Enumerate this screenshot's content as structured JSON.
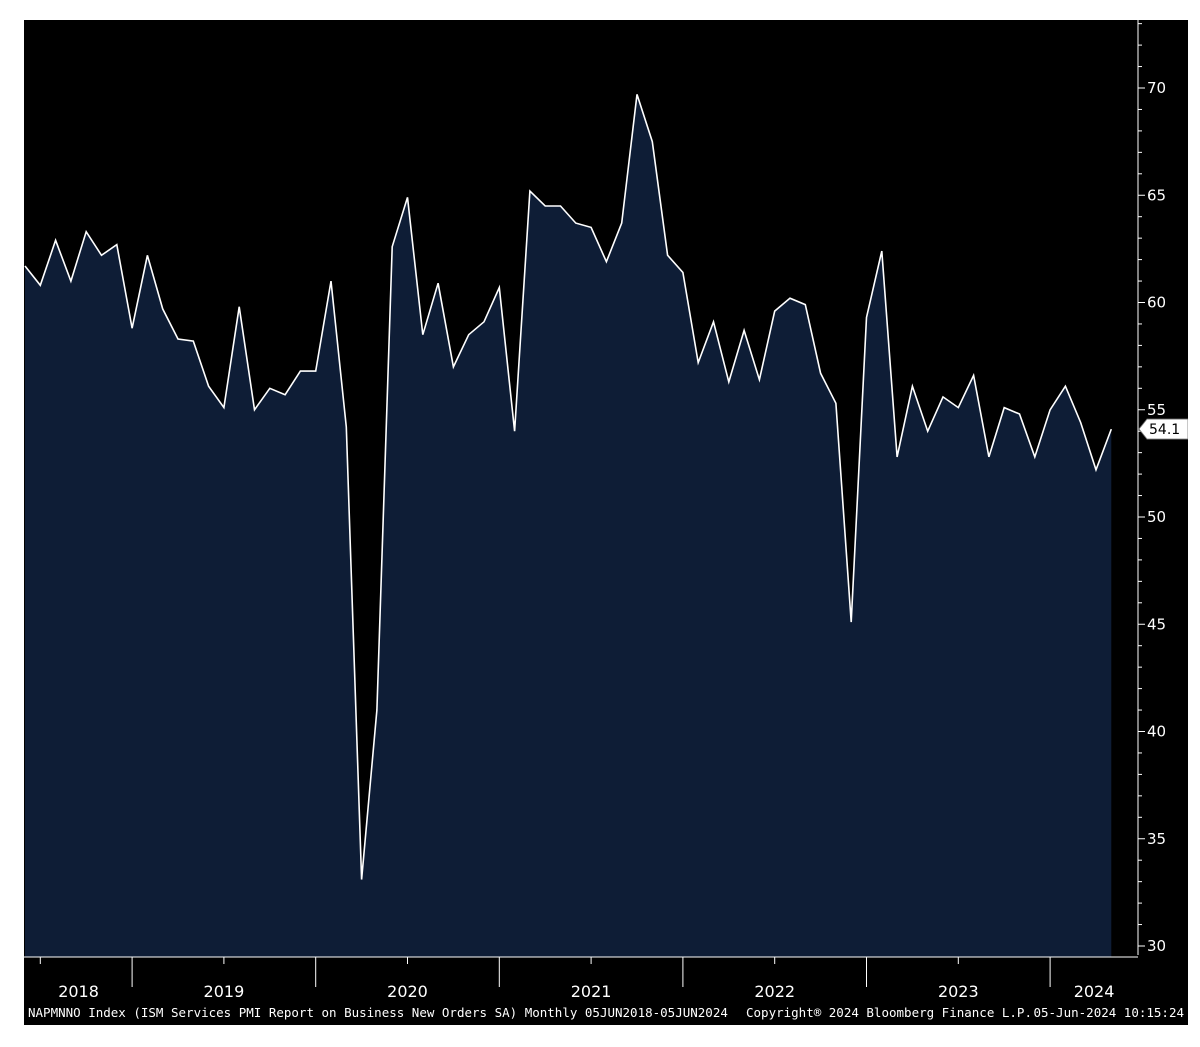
{
  "chart_data": {
    "type": "area",
    "series": [
      {
        "name": "NAPMNNO Index",
        "x": [
          "2018-06",
          "2018-07",
          "2018-08",
          "2018-09",
          "2018-10",
          "2018-11",
          "2018-12",
          "2019-01",
          "2019-02",
          "2019-03",
          "2019-04",
          "2019-05",
          "2019-06",
          "2019-07",
          "2019-08",
          "2019-09",
          "2019-10",
          "2019-11",
          "2019-12",
          "2020-01",
          "2020-02",
          "2020-03",
          "2020-04",
          "2020-05",
          "2020-06",
          "2020-07",
          "2020-08",
          "2020-09",
          "2020-10",
          "2020-11",
          "2020-12",
          "2021-01",
          "2021-02",
          "2021-03",
          "2021-04",
          "2021-05",
          "2021-06",
          "2021-07",
          "2021-08",
          "2021-09",
          "2021-10",
          "2021-11",
          "2021-12",
          "2022-01",
          "2022-02",
          "2022-03",
          "2022-04",
          "2022-05",
          "2022-06",
          "2022-07",
          "2022-08",
          "2022-09",
          "2022-10",
          "2022-11",
          "2022-12",
          "2023-01",
          "2023-02",
          "2023-03",
          "2023-04",
          "2023-05",
          "2023-06",
          "2023-07",
          "2023-08",
          "2023-09",
          "2023-10",
          "2023-11",
          "2023-12",
          "2024-01",
          "2024-02",
          "2024-03",
          "2024-04",
          "2024-05"
        ],
        "values": [
          61.7,
          60.8,
          62.9,
          61.0,
          63.3,
          62.2,
          62.7,
          58.8,
          62.2,
          59.7,
          58.3,
          58.2,
          56.1,
          55.1,
          59.8,
          55.0,
          56.0,
          55.7,
          56.8,
          56.8,
          61.0,
          54.2,
          33.1,
          41.0,
          62.6,
          64.9,
          58.5,
          60.9,
          57.0,
          58.5,
          59.1,
          60.7,
          54.0,
          65.2,
          64.5,
          64.5,
          63.7,
          63.5,
          61.9,
          63.7,
          69.7,
          67.5,
          62.2,
          61.4,
          57.2,
          59.1,
          56.3,
          58.7,
          56.4,
          59.6,
          60.2,
          59.9,
          56.7,
          55.3,
          45.1,
          59.3,
          62.4,
          52.8,
          56.1,
          54.0,
          55.6,
          55.1,
          56.6,
          52.8,
          55.1,
          54.8,
          52.8,
          55.0,
          56.1,
          54.4,
          52.2,
          54.1
        ]
      }
    ],
    "ylim": [
      30,
      73
    ],
    "yticks": [
      30,
      35,
      40,
      45,
      50,
      55,
      60,
      65,
      70
    ],
    "year_labels": [
      "2018",
      "2019",
      "2020",
      "2021",
      "2022",
      "2023",
      "2024"
    ],
    "last_value_label": "54.1",
    "grid": false,
    "colors": {
      "background": "#000000",
      "fill": "#0e1d36",
      "line": "#ffffff",
      "label_bg": "#ffffff"
    }
  },
  "footer": {
    "description": "NAPMNNO Index (ISM Services PMI Report on Business New Orders SA)  Monthly 05JUN2018-05JUN2024",
    "copyright": "Copyright® 2024 Bloomberg Finance L.P.",
    "timestamp": "05-Jun-2024 10:15:24"
  }
}
